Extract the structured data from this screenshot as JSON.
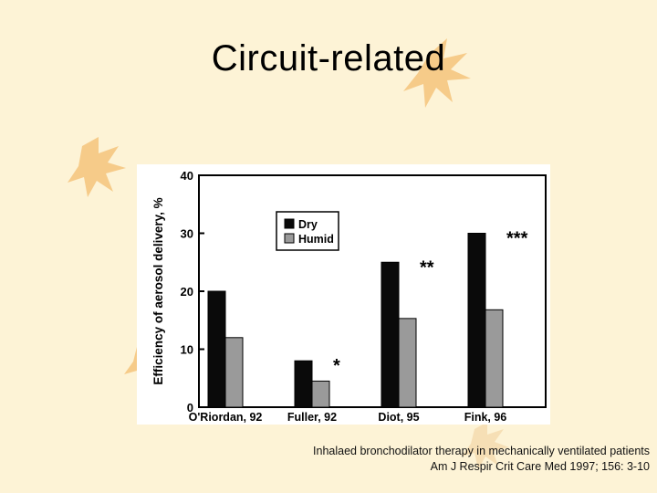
{
  "slide": {
    "title": "Circuit-related",
    "citation_line1": "Inhalaed bronchodilator therapy in mechanically ventilated patients",
    "citation_line2": "Am J Respir Crit Care Med 1997; 156: 3-10"
  },
  "colors": {
    "background": "#fdf3d6",
    "leaf_decoration": "#f0a94a",
    "dry": "#0a0a0a",
    "humid": "#9a9a9a"
  },
  "chart_data": {
    "type": "bar",
    "categories": [
      "O'Riordan, 92",
      "Fuller, 92",
      "Diot, 95",
      "Fink, 96"
    ],
    "series": [
      {
        "name": "Dry",
        "values": [
          20,
          8,
          25,
          30
        ]
      },
      {
        "name": "Humid",
        "values": [
          12,
          4.5,
          15.3,
          16.8
        ]
      }
    ],
    "annotations": [
      "",
      "*",
      "**",
      "***"
    ],
    "xlabel": "",
    "ylabel": "Efficiency of aerosol delivery, %",
    "yticks": [
      0,
      10,
      20,
      30,
      40
    ],
    "ylim": [
      0,
      40
    ],
    "grid": false,
    "legend_position": "top-center"
  }
}
